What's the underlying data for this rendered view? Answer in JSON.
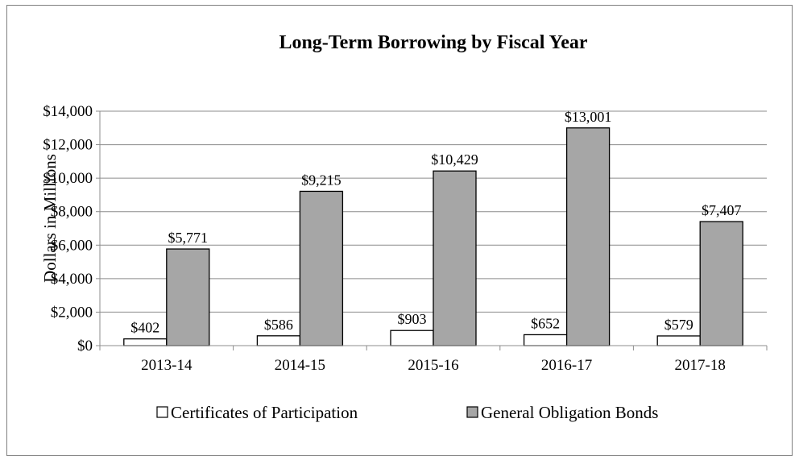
{
  "chart_data": {
    "type": "bar",
    "title": "Long-Term Borrowing by Fiscal Year",
    "ylabel": "Dollars in Millions",
    "xlabel": "",
    "categories": [
      "2013-14",
      "2014-15",
      "2015-16",
      "2016-17",
      "2017-18"
    ],
    "ylim": [
      0,
      14000
    ],
    "yticks": [
      0,
      2000,
      4000,
      6000,
      8000,
      10000,
      12000,
      14000
    ],
    "ytick_labels": [
      "$0",
      "$2,000",
      "$4,000",
      "$6,000",
      "$8,000",
      "$10,000",
      "$12,000",
      "$14,000"
    ],
    "grid": true,
    "legend_position": "bottom",
    "series": [
      {
        "name": "Certificates of Participation",
        "values": [
          402,
          586,
          903,
          652,
          579
        ],
        "labels": [
          "$402",
          "$586",
          "$903",
          "$652",
          "$579"
        ],
        "color": "#ffffff"
      },
      {
        "name": "General Obligation Bonds",
        "values": [
          5771,
          9215,
          10429,
          13001,
          7407
        ],
        "labels": [
          "$5,771",
          "$9,215",
          "$10,429",
          "$13,001",
          "$7,407"
        ],
        "color": "#a6a6a6"
      }
    ]
  }
}
